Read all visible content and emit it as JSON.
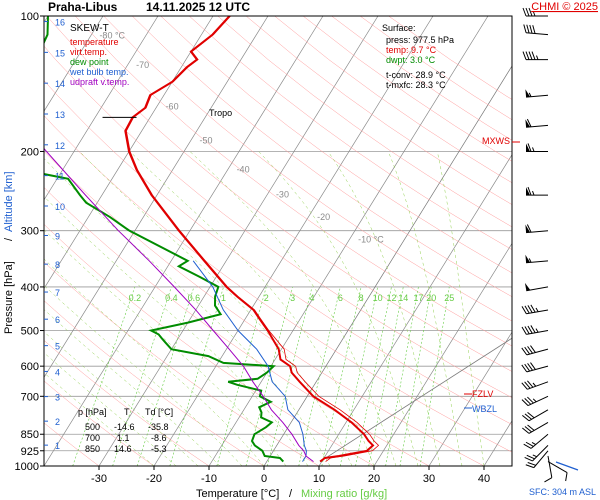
{
  "header": {
    "station": "Praha-Libus",
    "datetime": "14.11.2025 12 UTC",
    "copyright": "CHMI © 2025"
  },
  "colors": {
    "temperature": "#e00000",
    "virt_temp": "#e00000",
    "dew_point": "#008c00",
    "wet_bulb": "#2060d0",
    "updraft": "#a000c0",
    "isotherm": "#8a8a8a",
    "mixing_ratio": "#66cc44",
    "dry_adiabat": "#ff9b9b",
    "moist_adiabat": "#92d050"
  },
  "chart_data": {
    "type": "line",
    "title": "SKEW-T",
    "xlabel": "Temperature [°C]",
    "xlabel2": "Mixing ratio [g/kg]",
    "ylabel_pressure": "Pressure [hPa]",
    "ylabel_altitude": "Altitude [km]",
    "xlim": [
      -35,
      43
    ],
    "ylim": [
      1000,
      100
    ],
    "x_ticks": [
      -30,
      -20,
      -10,
      0,
      10,
      20,
      30,
      40
    ],
    "pressure_ticks": [
      100,
      200,
      300,
      400,
      500,
      600,
      700,
      850,
      925,
      1000
    ],
    "altitude_ticks": [
      1,
      2,
      3,
      4,
      5,
      6,
      7,
      8,
      9,
      10,
      11,
      12,
      13,
      14,
      15,
      16
    ],
    "isotherm_labels": [
      "-80 °C",
      "-70",
      "-60",
      "-50",
      "-40",
      "-30",
      "-20",
      "-10 °C"
    ],
    "mixing_ratio_labels": [
      "0.2",
      "0.4",
      "0.6",
      "1",
      "2",
      "3",
      "4",
      "6",
      "8",
      "10",
      "12",
      "14",
      "17",
      "20",
      "25"
    ],
    "legend": {
      "title": "SKEW-T",
      "items": [
        "temperature",
        "virt.temp.",
        "dew point",
        "wet bulb temp.",
        "udpraft v.temp."
      ]
    },
    "surface": {
      "title": "Surface:",
      "press": "press: 977.5 hPa",
      "temp": "temp: 9.7 °C",
      "dwpt": "dwpt: 3.0 °C",
      "tconv": "t-conv: 28.9 °C",
      "tmxfc": "t-mxfc: 28.3 °C"
    },
    "markers": {
      "tropo": "Tropo",
      "mxws": "MXWS",
      "fzlv": "FZLV",
      "wbzl": "WBZL",
      "sfc": "SFC: 304 m ASL"
    },
    "table": {
      "headers": [
        "p [hPa]",
        "T",
        "Td [°C]"
      ],
      "rows": [
        [
          "500",
          "-14.6",
          "-35.8"
        ],
        [
          "700",
          "1.1",
          "-8.6"
        ],
        [
          "850",
          "14.6",
          "-5.3"
        ]
      ]
    },
    "series": [
      {
        "name": "temperature",
        "points": [
          [
            977.5,
            9.7
          ],
          [
            960,
            10.2
          ],
          [
            950,
            12.5
          ],
          [
            925,
            17.0
          ],
          [
            900,
            17.5
          ],
          [
            880,
            16.2
          ],
          [
            850,
            14.6
          ],
          [
            800,
            11.0
          ],
          [
            750,
            6.5
          ],
          [
            700,
            1.1
          ],
          [
            650,
            -3.0
          ],
          [
            620,
            -5.5
          ],
          [
            600,
            -6.5
          ],
          [
            580,
            -9.0
          ],
          [
            550,
            -10.5
          ],
          [
            500,
            -14.6
          ],
          [
            470,
            -17.5
          ],
          [
            450,
            -19.5
          ],
          [
            420,
            -24.0
          ],
          [
            400,
            -27.0
          ],
          [
            350,
            -34.0
          ],
          [
            300,
            -42.0
          ],
          [
            250,
            -51.0
          ],
          [
            220,
            -56.5
          ],
          [
            200,
            -60.0
          ],
          [
            180,
            -63.0
          ],
          [
            168,
            -63.2
          ],
          [
            160,
            -62.0
          ],
          [
            150,
            -62.5
          ],
          [
            140,
            -60.0
          ],
          [
            130,
            -59.0
          ],
          [
            125,
            -58.0
          ],
          [
            120,
            -60.0
          ],
          [
            110,
            -58.0
          ],
          [
            100,
            -57.0
          ]
        ]
      },
      {
        "name": "dew point",
        "points": [
          [
            977.5,
            3.0
          ],
          [
            960,
            2.0
          ],
          [
            950,
            -1.0
          ],
          [
            925,
            -2.0
          ],
          [
            900,
            -4.0
          ],
          [
            880,
            -5.0
          ],
          [
            850,
            -5.3
          ],
          [
            820,
            -4.0
          ],
          [
            800,
            -3.5
          ],
          [
            780,
            -6.0
          ],
          [
            760,
            -6.5
          ],
          [
            740,
            -7.5
          ],
          [
            720,
            -6.0
          ],
          [
            700,
            -8.6
          ],
          [
            680,
            -9.0
          ],
          [
            660,
            -14.0
          ],
          [
            650,
            -16.0
          ],
          [
            640,
            -11.0
          ],
          [
            620,
            -10.0
          ],
          [
            600,
            -9.5
          ],
          [
            590,
            -19.0
          ],
          [
            570,
            -22.5
          ],
          [
            550,
            -30.0
          ],
          [
            530,
            -32.0
          ],
          [
            520,
            -33.0
          ],
          [
            510,
            -34.0
          ],
          [
            500,
            -35.8
          ],
          [
            480,
            -30.0
          ],
          [
            460,
            -25.0
          ],
          [
            440,
            -27.0
          ],
          [
            420,
            -28.0
          ],
          [
            400,
            -28.5
          ],
          [
            380,
            -33.0
          ],
          [
            360,
            -38.0
          ],
          [
            350,
            -37.0
          ],
          [
            300,
            -51.0
          ],
          [
            280,
            -56.0
          ],
          [
            260,
            -62.0
          ],
          [
            250,
            -64.0
          ],
          [
            230,
            -68.0
          ],
          [
            220,
            -77.0
          ],
          [
            210,
            -76.0
          ],
          [
            200,
            -77.0
          ],
          [
            190,
            -81.0
          ],
          [
            170,
            -83.0
          ],
          [
            168,
            -84.0
          ],
          [
            150,
            -85.0
          ],
          [
            140,
            -88.0
          ],
          [
            130,
            -87.0
          ],
          [
            120,
            -87.5
          ],
          [
            110,
            -88.0
          ],
          [
            100,
            -90.0
          ]
        ]
      },
      {
        "name": "wet bulb temp.",
        "points": [
          [
            977.5,
            6.5
          ],
          [
            950,
            6.5
          ],
          [
            925,
            6.0
          ],
          [
            900,
            5.0
          ],
          [
            850,
            3.5
          ],
          [
            800,
            1.5
          ],
          [
            750,
            -2.0
          ],
          [
            700,
            -4.0
          ],
          [
            650,
            -8.0
          ],
          [
            600,
            -10.5
          ],
          [
            550,
            -14.5
          ],
          [
            500,
            -20.0
          ],
          [
            450,
            -25.0
          ],
          [
            400,
            -29.5
          ],
          [
            350,
            -36.0
          ]
        ]
      },
      {
        "name": "udpraft v.temp.",
        "points": [
          [
            977.5,
            8.5
          ],
          [
            950,
            6.5
          ],
          [
            925,
            5.5
          ],
          [
            900,
            4.0
          ],
          [
            850,
            1.5
          ],
          [
            800,
            -1.5
          ],
          [
            750,
            -5.0
          ],
          [
            700,
            -8.0
          ],
          [
            650,
            -11.5
          ],
          [
            600,
            -15.0
          ],
          [
            550,
            -19.5
          ],
          [
            500,
            -24.5
          ],
          [
            450,
            -30.0
          ],
          [
            400,
            -36.5
          ],
          [
            350,
            -44.0
          ],
          [
            300,
            -53.0
          ],
          [
            250,
            -63.0
          ],
          [
            200,
            -75.0
          ],
          [
            150,
            -90.0
          ]
        ]
      }
    ],
    "winds": [
      {
        "p": 977.5,
        "dir": 120,
        "kt": 10
      },
      {
        "p": 950,
        "dir": 170,
        "kt": 12
      },
      {
        "p": 925,
        "dir": 220,
        "kt": 20
      },
      {
        "p": 900,
        "dir": 225,
        "kt": 25
      },
      {
        "p": 850,
        "dir": 230,
        "kt": 25
      },
      {
        "p": 800,
        "dir": 240,
        "kt": 30
      },
      {
        "p": 750,
        "dir": 240,
        "kt": 30
      },
      {
        "p": 700,
        "dir": 245,
        "kt": 35
      },
      {
        "p": 650,
        "dir": 250,
        "kt": 35
      },
      {
        "p": 600,
        "dir": 255,
        "kt": 40
      },
      {
        "p": 550,
        "dir": 255,
        "kt": 40
      },
      {
        "p": 500,
        "dir": 260,
        "kt": 45
      },
      {
        "p": 450,
        "dir": 260,
        "kt": 45
      },
      {
        "p": 400,
        "dir": 260,
        "kt": 50
      },
      {
        "p": 350,
        "dir": 265,
        "kt": 55
      },
      {
        "p": 300,
        "dir": 265,
        "kt": 60
      },
      {
        "p": 250,
        "dir": 270,
        "kt": 65
      },
      {
        "p": 200,
        "dir": 270,
        "kt": 65
      },
      {
        "p": 175,
        "dir": 265,
        "kt": 60
      },
      {
        "p": 150,
        "dir": 265,
        "kt": 55
      },
      {
        "p": 125,
        "dir": 270,
        "kt": 45
      },
      {
        "p": 110,
        "dir": 275,
        "kt": 40
      },
      {
        "p": 100,
        "dir": 270,
        "kt": 35
      }
    ]
  }
}
